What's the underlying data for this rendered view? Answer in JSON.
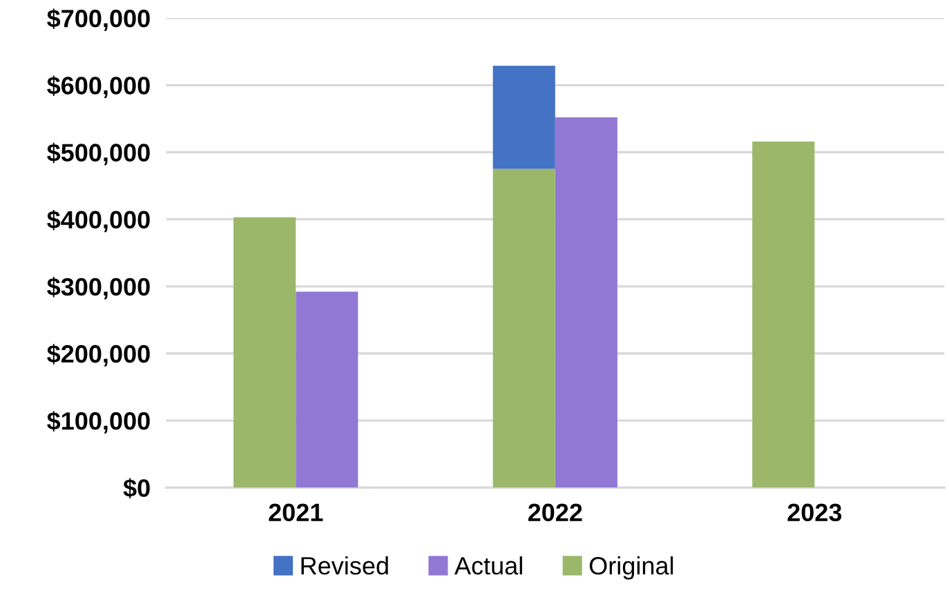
{
  "chart_data": {
    "type": "bar",
    "categories": [
      "2021",
      "2022",
      "2023"
    ],
    "series": [
      {
        "name": "Revised",
        "color": "#4472c4",
        "base": [
          null,
          475000,
          null
        ],
        "values": [
          null,
          154000,
          null
        ]
      },
      {
        "name": "Actual",
        "color": "#9178d4",
        "values": [
          292000,
          552000,
          null
        ]
      },
      {
        "name": "Original",
        "color": "#9bb76a",
        "base": [
          0,
          0,
          0
        ],
        "values": [
          403000,
          475000,
          516000
        ]
      }
    ],
    "ylim": [
      0,
      700000
    ],
    "yticks": [
      {
        "value": 0,
        "label": "$0"
      },
      {
        "value": 100000,
        "label": "$100,000"
      },
      {
        "value": 200000,
        "label": "$200,000"
      },
      {
        "value": 300000,
        "label": "$300,000"
      },
      {
        "value": 400000,
        "label": "$400,000"
      },
      {
        "value": 500000,
        "label": "$500,000"
      },
      {
        "value": 600000,
        "label": "$600,000"
      },
      {
        "value": 700000,
        "label": "$700,000"
      }
    ],
    "grid": "y",
    "legend": "bottom"
  }
}
